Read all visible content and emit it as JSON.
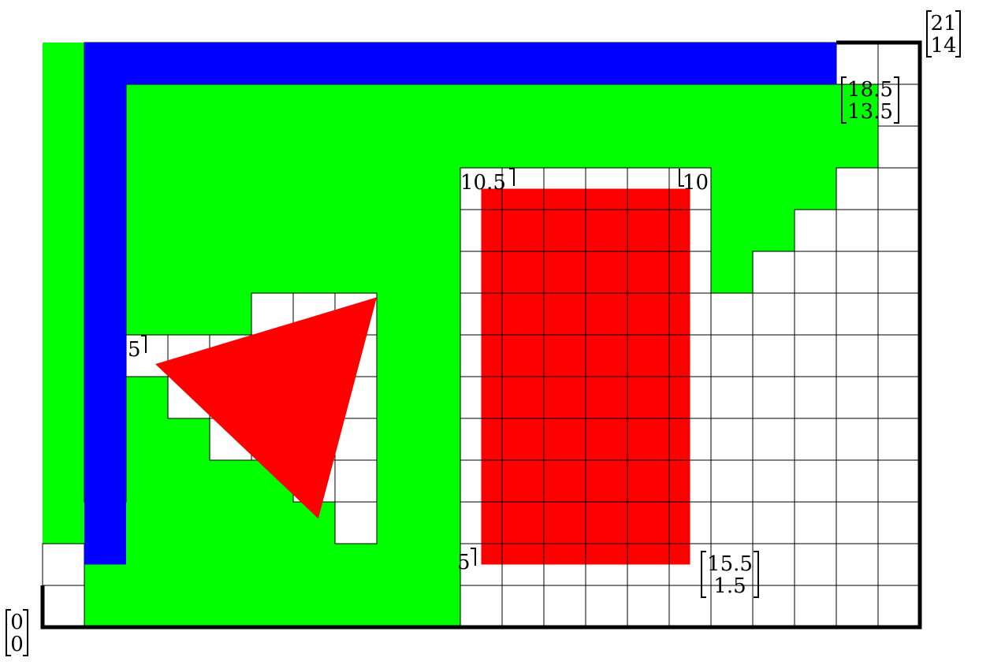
{
  "colors": {
    "background": "#ffffff",
    "grid": "#000000",
    "free_region": "#00ff00",
    "path": "#0000ff",
    "obstacle": "#ff0000"
  },
  "grid": {
    "cols": 21,
    "rows": 14
  },
  "corner_labels": [
    {
      "id": "origin",
      "top": "0",
      "bottom": "0",
      "x": 0,
      "y": 0
    },
    {
      "id": "top-right",
      "top": "21",
      "bottom": "14",
      "x": 21,
      "y": 14
    },
    {
      "id": "goal",
      "top": "18.5",
      "bottom": "13.5",
      "x": 18.5,
      "y": 13.5
    },
    {
      "id": "rect-bottom-right",
      "top": "15.5",
      "bottom": "1.5",
      "x": 15.5,
      "y": 1.5
    }
  ],
  "partial_labels": [
    {
      "id": "rect-top-left",
      "text": "10.5"
    },
    {
      "id": "rect-top-right",
      "text": "10"
    },
    {
      "id": "triangle-left",
      "text": "5"
    },
    {
      "id": "rect-bottom-left",
      "text": "5"
    }
  ],
  "obstacles": [
    {
      "type": "rectangle",
      "x0": 10.5,
      "y0": 1.5,
      "x1": 15.5,
      "y1": 10.5
    },
    {
      "type": "triangle",
      "points": [
        [
          2.7,
          6.3
        ],
        [
          8.0,
          7.9
        ],
        [
          6.6,
          2.6
        ]
      ]
    }
  ],
  "free_cells": [
    [
      0,
      2
    ],
    [
      0,
      3
    ],
    [
      0,
      4
    ],
    [
      0,
      5
    ],
    [
      0,
      6
    ],
    [
      0,
      7
    ],
    [
      0,
      8
    ],
    [
      0,
      9
    ],
    [
      0,
      10
    ],
    [
      0,
      11
    ],
    [
      0,
      12
    ],
    [
      0,
      13
    ],
    [
      1,
      0
    ],
    [
      1,
      1
    ],
    [
      1,
      2
    ],
    [
      2,
      0
    ],
    [
      2,
      1
    ],
    [
      2,
      2
    ],
    [
      2,
      3
    ],
    [
      2,
      4
    ],
    [
      2,
      5
    ],
    [
      2,
      7
    ],
    [
      2,
      8
    ],
    [
      2,
      9
    ],
    [
      2,
      10
    ],
    [
      2,
      11
    ],
    [
      2,
      12
    ],
    [
      3,
      0
    ],
    [
      3,
      1
    ],
    [
      3,
      2
    ],
    [
      3,
      3
    ],
    [
      3,
      4
    ],
    [
      3,
      7
    ],
    [
      3,
      8
    ],
    [
      3,
      9
    ],
    [
      3,
      10
    ],
    [
      3,
      11
    ],
    [
      3,
      12
    ],
    [
      4,
      0
    ],
    [
      4,
      1
    ],
    [
      4,
      2
    ],
    [
      4,
      3
    ],
    [
      4,
      7
    ],
    [
      4,
      8
    ],
    [
      4,
      9
    ],
    [
      4,
      10
    ],
    [
      4,
      11
    ],
    [
      4,
      12
    ],
    [
      5,
      0
    ],
    [
      5,
      1
    ],
    [
      5,
      2
    ],
    [
      5,
      3
    ],
    [
      5,
      8
    ],
    [
      5,
      9
    ],
    [
      5,
      10
    ],
    [
      5,
      11
    ],
    [
      5,
      12
    ],
    [
      6,
      0
    ],
    [
      6,
      1
    ],
    [
      6,
      2
    ],
    [
      6,
      8
    ],
    [
      6,
      9
    ],
    [
      6,
      10
    ],
    [
      6,
      11
    ],
    [
      6,
      12
    ],
    [
      7,
      0
    ],
    [
      7,
      1
    ],
    [
      7,
      8
    ],
    [
      7,
      9
    ],
    [
      7,
      10
    ],
    [
      7,
      11
    ],
    [
      7,
      12
    ],
    [
      8,
      0
    ],
    [
      8,
      1
    ],
    [
      8,
      2
    ],
    [
      8,
      3
    ],
    [
      8,
      4
    ],
    [
      8,
      5
    ],
    [
      8,
      6
    ],
    [
      8,
      7
    ],
    [
      8,
      8
    ],
    [
      8,
      9
    ],
    [
      8,
      10
    ],
    [
      8,
      11
    ],
    [
      8,
      12
    ],
    [
      9,
      0
    ],
    [
      9,
      1
    ],
    [
      9,
      2
    ],
    [
      9,
      3
    ],
    [
      9,
      4
    ],
    [
      9,
      5
    ],
    [
      9,
      6
    ],
    [
      9,
      7
    ],
    [
      9,
      8
    ],
    [
      9,
      9
    ],
    [
      9,
      10
    ],
    [
      9,
      11
    ],
    [
      9,
      12
    ],
    [
      10,
      11
    ],
    [
      10,
      12
    ],
    [
      11,
      11
    ],
    [
      11,
      12
    ],
    [
      12,
      11
    ],
    [
      12,
      12
    ],
    [
      13,
      11
    ],
    [
      13,
      12
    ],
    [
      14,
      11
    ],
    [
      14,
      12
    ],
    [
      15,
      11
    ],
    [
      15,
      12
    ],
    [
      16,
      8
    ],
    [
      16,
      9
    ],
    [
      16,
      10
    ],
    [
      16,
      11
    ],
    [
      16,
      12
    ],
    [
      17,
      9
    ],
    [
      17,
      10
    ],
    [
      17,
      11
    ],
    [
      17,
      12
    ],
    [
      18,
      10
    ],
    [
      18,
      11
    ],
    [
      18,
      12
    ],
    [
      19,
      11
    ],
    [
      19,
      12
    ]
  ],
  "path_points": [
    [
      1.5,
      2.0
    ],
    [
      1.5,
      13.5
    ],
    [
      18.5,
      13.5
    ]
  ]
}
